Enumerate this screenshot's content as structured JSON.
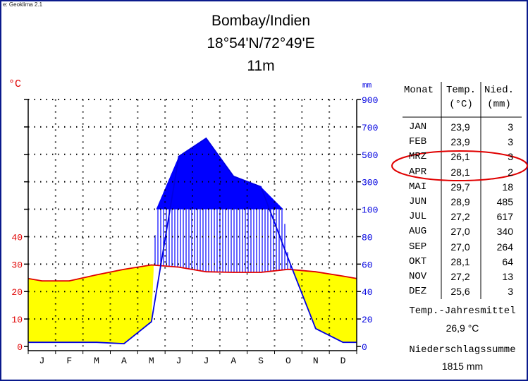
{
  "app_title": "e: Geoklima 2.1",
  "title": {
    "line1": "Bombay/Indien",
    "line2": "18°54'N/72°49'E",
    "line3": "11m"
  },
  "colors": {
    "temperature": "#e00000",
    "precipitation": "#0000e0",
    "arid_fill": "#ffff00",
    "humid_fill": "#0000ff",
    "highlight": "#e00000",
    "frame": "#0a1a8c"
  },
  "chart_data": {
    "type": "line",
    "title": "Bombay/Indien",
    "categories": [
      "J",
      "F",
      "M",
      "A",
      "M",
      "J",
      "J",
      "A",
      "S",
      "O",
      "N",
      "D"
    ],
    "series": [
      {
        "name": "Temp.",
        "unit": "°C",
        "values": [
          23.9,
          23.9,
          26.1,
          28.1,
          29.7,
          28.9,
          27.2,
          27.0,
          27.0,
          28.1,
          27.2,
          25.6
        ]
      },
      {
        "name": "Nied.",
        "unit": "mm",
        "values": [
          3,
          3,
          3,
          2,
          18,
          485,
          617,
          340,
          264,
          64,
          13,
          3
        ]
      }
    ],
    "left_axis": {
      "label": "°C",
      "ticks": [
        "0",
        "10",
        "20",
        "30",
        "40"
      ],
      "range": [
        0,
        90
      ]
    },
    "right_axis": {
      "label": "mm",
      "ticks": [
        "0",
        "20",
        "40",
        "60",
        "80",
        "100",
        "300",
        "500",
        "700",
        "900"
      ],
      "scale": "linear 0-100 mm, compressed above 100 mm"
    },
    "grid": true
  },
  "table": {
    "headers": {
      "month": "Monat",
      "temp_top": "Temp.",
      "temp_bottom": "(°C)",
      "prec_top": "Nied.",
      "prec_bottom": "(mm)"
    },
    "rows": [
      {
        "month": "JAN",
        "temp": "23,9",
        "prec": "3"
      },
      {
        "month": "FEB",
        "temp": "23,9",
        "prec": "3"
      },
      {
        "month": "MRZ",
        "temp": "26,1",
        "prec": "3"
      },
      {
        "month": "APR",
        "temp": "28,1",
        "prec": "2"
      },
      {
        "month": "MAI",
        "temp": "29,7",
        "prec": "18"
      },
      {
        "month": "JUN",
        "temp": "28,9",
        "prec": "485"
      },
      {
        "month": "JUL",
        "temp": "27,2",
        "prec": "617"
      },
      {
        "month": "AUG",
        "temp": "27,0",
        "prec": "340"
      },
      {
        "month": "SEP",
        "temp": "27,0",
        "prec": "264"
      },
      {
        "month": "OKT",
        "temp": "28,1",
        "prec": "64"
      },
      {
        "month": "NOV",
        "temp": "27,2",
        "prec": "13"
      },
      {
        "month": "DEZ",
        "temp": "25,6",
        "prec": "3"
      }
    ],
    "highlighted_rows": [
      "MRZ",
      "APR"
    ]
  },
  "summary": {
    "temp_label": "Temp.-Jahresmittel",
    "temp_value": "26,9 °C",
    "prec_label": "Niederschlagssumme",
    "prec_value": "1815 mm"
  }
}
